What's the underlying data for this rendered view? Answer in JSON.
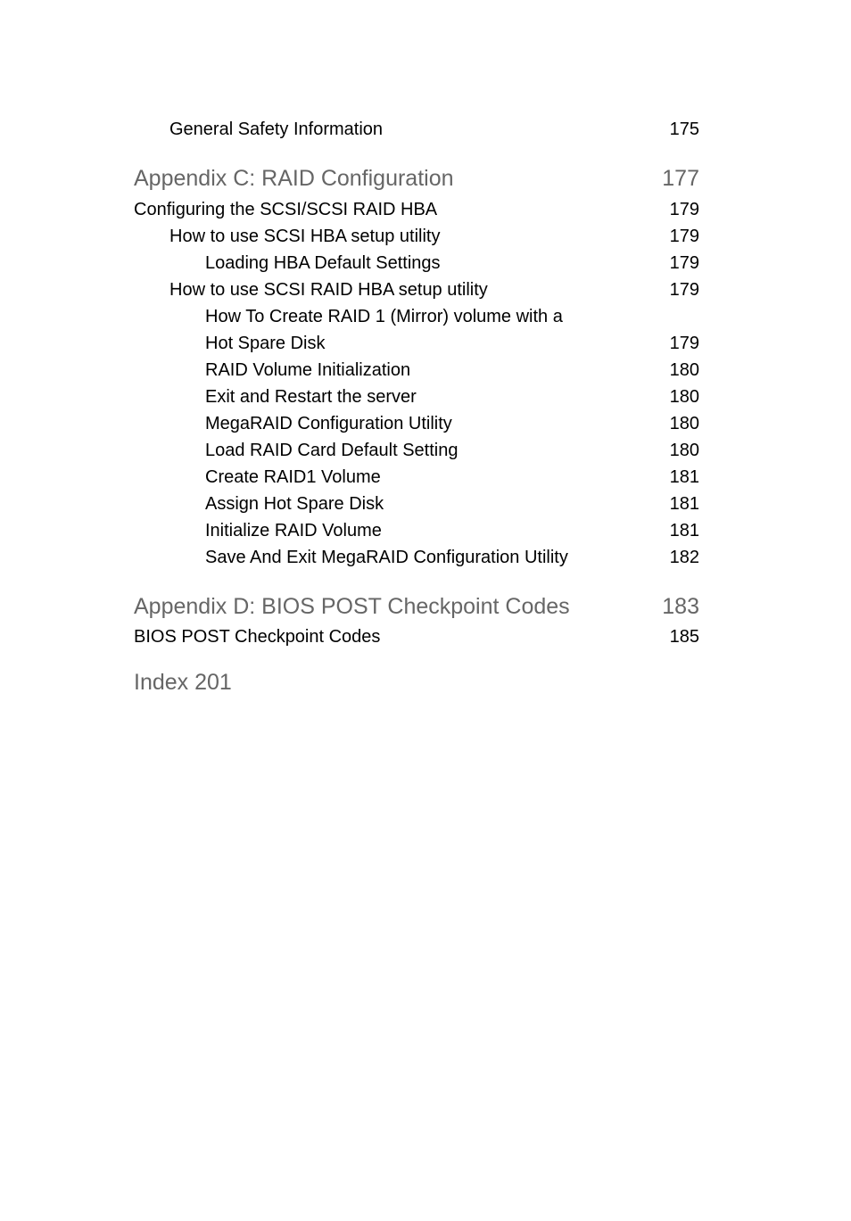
{
  "colors": {
    "text": "#000000",
    "gray_text": "#666666",
    "background": "#ffffff"
  },
  "typography": {
    "section_fontsize": 25,
    "body_fontsize": 20,
    "font_family": "Segoe UI / Frutiger"
  },
  "top_entry": {
    "label": "General Safety Information",
    "page": "175",
    "indent": 1
  },
  "appendix_c": {
    "title": "Appendix C: RAID Configuration",
    "page": "177",
    "entries": [
      {
        "label": "Configuring the SCSI/SCSI RAID HBA",
        "page": "179",
        "indent": 0
      },
      {
        "label": "How to use SCSI HBA setup utility",
        "page": "179",
        "indent": 1
      },
      {
        "label": "Loading HBA Default Settings",
        "page": "179",
        "indent": 2
      },
      {
        "label": "How to use SCSI RAID HBA setup utility",
        "page": "179",
        "indent": 1
      },
      {
        "label": "How To Create RAID 1 (Mirror) volume with a",
        "page": "",
        "indent": 2
      },
      {
        "label": "Hot Spare Disk",
        "page": "179",
        "indent": 2
      },
      {
        "label": "RAID Volume Initialization",
        "page": "180",
        "indent": 2
      },
      {
        "label": "Exit and Restart the server",
        "page": "180",
        "indent": 2
      },
      {
        "label": "MegaRAID Configuration Utility",
        "page": "180",
        "indent": 2
      },
      {
        "label": "Load RAID Card Default Setting",
        "page": "180",
        "indent": 2
      },
      {
        "label": "Create RAID1 Volume",
        "page": "181",
        "indent": 2
      },
      {
        "label": "Assign Hot Spare Disk",
        "page": "181",
        "indent": 2
      },
      {
        "label": "Initialize RAID Volume",
        "page": "181",
        "indent": 2
      },
      {
        "label": "Save And Exit MegaRAID Configuration Utility",
        "page": "182",
        "indent": 2
      }
    ]
  },
  "appendix_d": {
    "title": "Appendix D: BIOS POST Checkpoint Codes",
    "page": "183",
    "entries": [
      {
        "label": "BIOS POST Checkpoint Codes",
        "page": "185",
        "indent": 0
      }
    ]
  },
  "index": {
    "label": "Index 201"
  }
}
